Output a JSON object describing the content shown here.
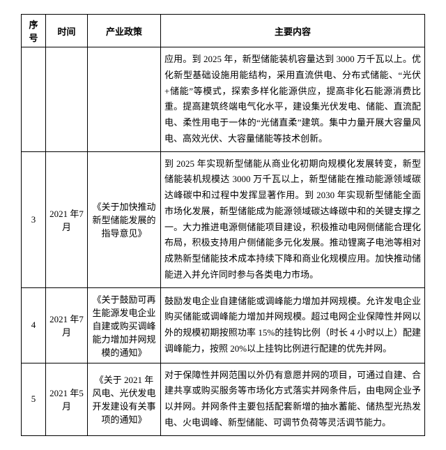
{
  "headers": {
    "seq": "序号",
    "time": "时间",
    "policy": "产业政策",
    "content": "主要内容"
  },
  "rows": [
    {
      "seq": "",
      "time": "",
      "policy": "",
      "content": "应用。到 2025 年，新型储能装机容量达到 3000 万千瓦以上。优化新型基础设施用能结构，采用直流供电、分布式储能、“光伏+储能”等模式，探索多样化能源供应，提高非化石能源消费比重。提高建筑终端电气化水平，建设集光伏发电、储能、直流配电、柔性用电于一体的“光储直柔”建筑。集中力量开展大容量风电、高效光伏、大容量储能等技术创新。"
    },
    {
      "seq": "3",
      "time": "2021 年7 月",
      "policy": "《关于加快推动新型储能发展的指导意见》",
      "content": "到 2025 年实现新型储能从商业化初期向规模化发展转变，新型储能装机规模达 3000 万千瓦以上，新型储能在推动能源领域碳达峰碳中和过程中发挥显著作用。到 2030 年实现新型储能全面市场化发展，新型储能成为能源领域碳达峰碳中和的关键支撑之一。大力推进电源侧储能项目建设，积极推动电网侧储能合理化布局，积极支持用户侧储能多元化发展。推动锂离子电池等相对成熟新型储能技术成本持续下降和商业化规模应用。加快推动储能进入并允许同时参与各类电力市场。"
    },
    {
      "seq": "4",
      "time": "2021 年7 月",
      "policy": "《关于鼓励可再生能源发电企业自建或购买调峰能力增加并网规模的通知》",
      "content": "鼓励发电企业自建储能或调峰能力增加并网规模。允许发电企业购买储能或调峰能力增加并网规模。超过电网企业保障性并网以外的规模初期按照功率 15%的挂钩比例（时长 4 小时以上）配建调峰能力，按照 20%以上挂钩比例进行配建的优先并网。"
    },
    {
      "seq": "5",
      "time": "2021 年5 月",
      "policy": "《关于 2021 年风电、光伏发电开发建设有关事项的通知》",
      "content": "对于保障性并网范围以外仍有意愿并网的项目，可通过自建、合建共享或购买服务等市场化方式落实并网条件后，由电网企业予以并网。并网条件主要包括配套新增的抽水蓄能、储热型光热发电、火电调峰、新型储能、可调节负荷等灵活调节能力。"
    }
  ]
}
